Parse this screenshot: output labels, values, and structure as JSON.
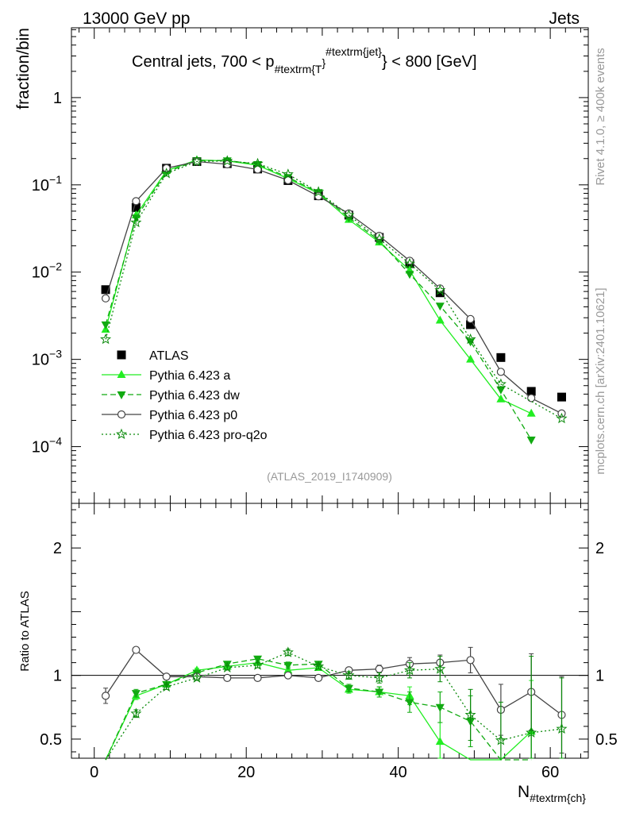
{
  "header": {
    "energy_label": "13000 GeV pp",
    "jets_label": "Jets"
  },
  "side_labels": {
    "rivet": "Rivet 4.1.0, ≥ 400k events",
    "mcplots": "mcplots.cern.ch [arXiv:2401.10621]"
  },
  "chart_data": {
    "type": "line",
    "title_parts": {
      "prefix": "Central jets, 700 < p",
      "sub": "#textrm{T",
      "sup_brace": "}",
      "sup": "#textrm{jet}",
      "suffix": "} < 800 [GeV]"
    },
    "ylabel": "fraction/bin",
    "xlabel_main": "N",
    "xlabel_sub": "#textrm{ch}",
    "xlim": [
      -3,
      65
    ],
    "ylim_main_log10": [
      -4.65,
      0.8
    ],
    "ylim_ratio": [
      0.35,
      2.35
    ],
    "ratio_ylabel": "Ratio to ATLAS",
    "watermark": "(ATLAS_2019_I1740909)",
    "x_ticks": [
      "0",
      "20",
      "40",
      "60"
    ],
    "y_ticks_main": [
      {
        "base": "10",
        "exp": "−4",
        "log": -4
      },
      {
        "base": "10",
        "exp": "−3",
        "log": -3
      },
      {
        "base": "10",
        "exp": "−2",
        "log": -2
      },
      {
        "base": "10",
        "exp": "−1",
        "log": -1
      },
      {
        "base": "1",
        "exp": "",
        "log": 0
      }
    ],
    "y_ticks_ratio": [
      "0.5",
      "1",
      "2"
    ],
    "x": [
      1.5,
      5.5,
      9.5,
      13.5,
      17.5,
      21.5,
      25.5,
      29.5,
      33.5,
      37.5,
      41.5,
      45.5,
      49.5,
      53.5,
      57.5,
      61.5
    ],
    "series": [
      {
        "name": "ATLAS",
        "color": "#000000",
        "marker": "square",
        "line": "none",
        "values": [
          0.0063,
          0.055,
          0.155,
          0.185,
          0.175,
          0.152,
          0.112,
          0.075,
          0.045,
          0.025,
          0.0125,
          0.0058,
          0.0025,
          0.00105,
          0.00043,
          0.00037
        ]
      },
      {
        "name": "Pythia 6.423 a",
        "color": "#22ee22",
        "marker": "triangle-up",
        "line": "solid",
        "values": [
          0.0022,
          0.045,
          0.145,
          0.193,
          0.188,
          0.168,
          0.118,
          0.08,
          0.04,
          0.022,
          0.0105,
          0.0028,
          0.001,
          0.00035,
          0.00024,
          null
        ],
        "ratio": [
          0.3,
          0.84,
          0.93,
          1.04,
          1.07,
          1.1,
          1.04,
          1.06,
          0.89,
          0.87,
          0.84,
          0.48,
          0.3,
          0.3,
          0.56,
          null
        ],
        "ratio_err": [
          0,
          0.03,
          0.02,
          0.015,
          0.015,
          0.02,
          0.025,
          0.02,
          0.03,
          0.04,
          0.07,
          0.15,
          0,
          0,
          0.4,
          0
        ]
      },
      {
        "name": "Pythia 6.423 dw",
        "color": "#11aa11",
        "marker": "triangle-down",
        "line": "dashed",
        "values": [
          0.0025,
          0.042,
          0.14,
          0.19,
          0.19,
          0.172,
          0.122,
          0.082,
          0.042,
          0.023,
          0.0095,
          0.0041,
          0.0016,
          0.00045,
          0.00012,
          null
        ],
        "ratio": [
          0.3,
          0.86,
          0.93,
          1.02,
          1.09,
          1.13,
          1.08,
          1.09,
          0.9,
          0.87,
          0.79,
          0.75,
          0.64,
          0.3,
          0.3,
          null
        ],
        "ratio_err": [
          0,
          0.03,
          0.02,
          0.015,
          0.015,
          0.02,
          0.025,
          0.02,
          0.03,
          0.04,
          0.08,
          0.12,
          0.2,
          0,
          0,
          0
        ]
      },
      {
        "name": "Pythia 6.423 p0",
        "color": "#444444",
        "marker": "circle-open",
        "line": "solid",
        "values": [
          0.005,
          0.065,
          0.155,
          0.185,
          0.172,
          0.15,
          0.113,
          0.074,
          0.047,
          0.026,
          0.0135,
          0.0065,
          0.0029,
          0.00072,
          0.00036,
          0.00024
        ],
        "ratio": [
          0.84,
          1.2,
          0.99,
          0.99,
          0.98,
          0.98,
          1.0,
          0.98,
          1.04,
          1.05,
          1.09,
          1.1,
          1.12,
          0.73,
          0.87,
          0.69
        ],
        "ratio_err": [
          0.06,
          0.02,
          0.01,
          0.01,
          0.01,
          0.01,
          0.015,
          0.015,
          0.02,
          0.03,
          0.05,
          0.06,
          0.1,
          0.2,
          0.3,
          0.3
        ]
      },
      {
        "name": "Pythia 6.423 pro-q2o",
        "color": "#0a8a0a",
        "marker": "star",
        "line": "dotted",
        "values": [
          0.0017,
          0.037,
          0.135,
          0.185,
          0.188,
          0.175,
          0.132,
          0.083,
          0.045,
          0.024,
          0.0125,
          0.0062,
          0.0017,
          0.00052,
          null,
          0.00021
        ],
        "ratio": [
          0.3,
          0.7,
          0.91,
          0.98,
          1.06,
          1.08,
          1.18,
          1.07,
          1.0,
          0.98,
          1.04,
          1.05,
          0.69,
          0.49,
          0.55,
          0.58
        ],
        "ratio_err": [
          0,
          0.03,
          0.02,
          0.015,
          0.015,
          0.02,
          0.025,
          0.02,
          0.03,
          0.04,
          0.06,
          0.1,
          0.2,
          0.3,
          0.6,
          0.4
        ]
      }
    ],
    "legend_position": "lower-left"
  }
}
